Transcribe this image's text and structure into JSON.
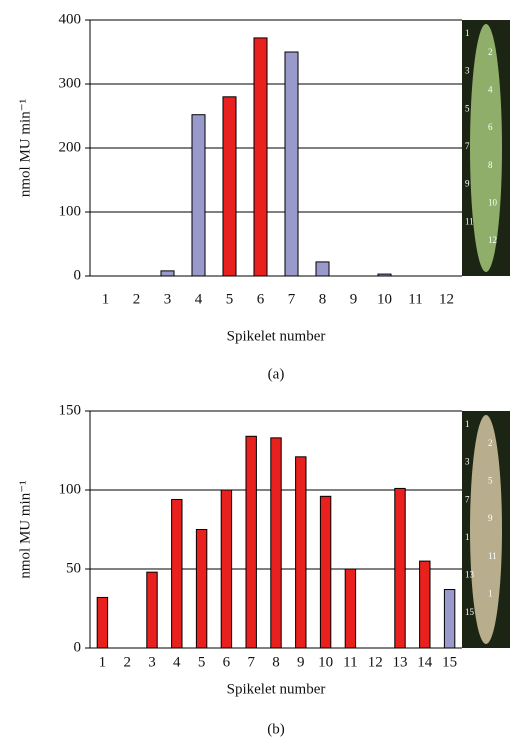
{
  "chart_data": [
    {
      "type": "bar",
      "caption": "(a)",
      "ylabel": "nmol MU min⁻¹",
      "xlabel": "Spikelet number",
      "categories": [
        "1",
        "2",
        "3",
        "4",
        "5",
        "6",
        "7",
        "8",
        "9",
        "10",
        "11",
        "12"
      ],
      "values": [
        0,
        0,
        8,
        252,
        280,
        372,
        350,
        22,
        0,
        3,
        0,
        0
      ],
      "colors": [
        "#9999cc",
        "#9999cc",
        "#9999cc",
        "#9999cc",
        "#e8201e",
        "#e8201e",
        "#9999cc",
        "#9999cc",
        "#9999cc",
        "#9999cc",
        "#9999cc",
        "#9999cc"
      ],
      "ylim": [
        0,
        400
      ],
      "yticks": [
        0,
        100,
        200,
        300,
        400
      ],
      "grid": true,
      "photo_labels": [
        "1",
        "2",
        "3",
        "4",
        "5",
        "6",
        "7",
        "8",
        "9",
        "10",
        "11",
        "12"
      ]
    },
    {
      "type": "bar",
      "caption": "(b)",
      "ylabel": "nmol MU min⁻¹",
      "xlabel": "Spikelet number",
      "categories": [
        "1",
        "2",
        "3",
        "4",
        "5",
        "6",
        "7",
        "8",
        "9",
        "10",
        "11",
        "12",
        "13",
        "14",
        "15"
      ],
      "values": [
        32,
        0,
        48,
        94,
        75,
        100,
        134,
        133,
        121,
        96,
        50,
        0,
        101,
        55,
        37
      ],
      "colors": [
        "#e8201e",
        "#e8201e",
        "#e8201e",
        "#e8201e",
        "#e8201e",
        "#e8201e",
        "#e8201e",
        "#e8201e",
        "#e8201e",
        "#e8201e",
        "#e8201e",
        "#e8201e",
        "#e8201e",
        "#e8201e",
        "#9999cc"
      ],
      "ylim": [
        0,
        150
      ],
      "yticks": [
        0,
        50,
        100,
        150
      ],
      "grid": true,
      "photo_labels": [
        "1",
        "2",
        "3",
        "5",
        "7",
        "9",
        "1",
        "11",
        "13",
        "1",
        "15"
      ]
    }
  ]
}
